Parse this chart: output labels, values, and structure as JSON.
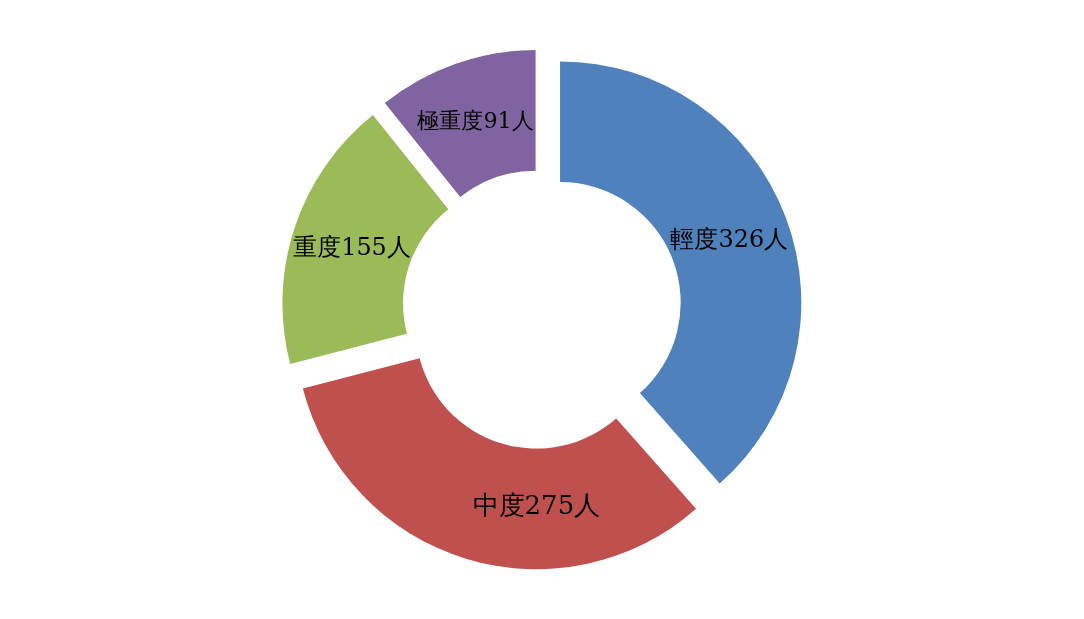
{
  "chart_data": {
    "type": "donut",
    "categories": [
      "輕度",
      "中度",
      "重度",
      "極重度"
    ],
    "values": [
      326,
      275,
      155,
      91
    ],
    "value_labels": [
      "326人",
      "275人",
      "155人",
      "91人"
    ],
    "colors": [
      "#4f81bd",
      "#c0504d",
      "#9bbb59",
      "#8064a2"
    ],
    "legend": false
  }
}
